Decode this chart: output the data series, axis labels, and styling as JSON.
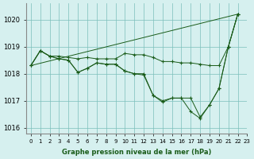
{
  "title": "Graphe pression niveau de la mer (hPa)",
  "background_color": "#d6f0ef",
  "line_color": "#1a5c1a",
  "grid_color": "#7bbfba",
  "xlim": [
    -0.5,
    23
  ],
  "ylim": [
    1015.8,
    1020.6
  ],
  "yticks": [
    1016,
    1017,
    1018,
    1019,
    1020
  ],
  "xtick_labels": [
    "0",
    "1",
    "2",
    "3",
    "4",
    "5",
    "6",
    "7",
    "8",
    "9",
    "10",
    "11",
    "12",
    "13",
    "14",
    "15",
    "16",
    "17",
    "18",
    "19",
    "20",
    "21",
    "22",
    "23"
  ],
  "series": [
    {
      "x": [
        0,
        1,
        2,
        3,
        4,
        5,
        6,
        7,
        8,
        9,
        10,
        11,
        12,
        13,
        14,
        15,
        16,
        17,
        18,
        19,
        20,
        21,
        22
      ],
      "y": [
        1018.3,
        1018.85,
        1018.65,
        1018.65,
        1018.6,
        1018.55,
        1018.6,
        1018.55,
        1018.55,
        1018.55,
        1018.75,
        1018.7,
        1018.7,
        1018.6,
        1018.45,
        1018.45,
        1018.4,
        1018.4,
        1018.35,
        1018.3,
        1018.3,
        1019.0,
        1020.2
      ],
      "markers": true
    },
    {
      "x": [
        0,
        1,
        2,
        3,
        4,
        5,
        6,
        7,
        8,
        9,
        10,
        11,
        12,
        13,
        14,
        15,
        16,
        17,
        18,
        19,
        20,
        21,
        22
      ],
      "y": [
        1018.3,
        1018.85,
        1018.65,
        1018.55,
        1018.5,
        1018.05,
        1018.2,
        1018.4,
        1018.35,
        1018.35,
        1018.1,
        1018.0,
        1018.0,
        1017.2,
        1017.0,
        1017.1,
        1017.1,
        1017.1,
        1016.4,
        1016.85,
        1017.45,
        1019.0,
        1020.2
      ],
      "markers": true
    },
    {
      "x": [
        0,
        1,
        2,
        3,
        4,
        5,
        6,
        7,
        8,
        9,
        10,
        11,
        12,
        13,
        14,
        15,
        16,
        17,
        18,
        19,
        20,
        21,
        22
      ],
      "y": [
        1018.3,
        1018.85,
        1018.65,
        1018.55,
        1018.5,
        1018.05,
        1018.2,
        1018.4,
        1018.35,
        1018.35,
        1018.1,
        1018.0,
        1017.95,
        1017.2,
        1016.95,
        1017.1,
        1017.1,
        1016.6,
        1016.35,
        1016.85,
        1017.45,
        1019.0,
        1020.2
      ],
      "markers": true
    },
    {
      "x": [
        0,
        22
      ],
      "y": [
        1018.3,
        1020.2
      ],
      "markers": false
    }
  ]
}
